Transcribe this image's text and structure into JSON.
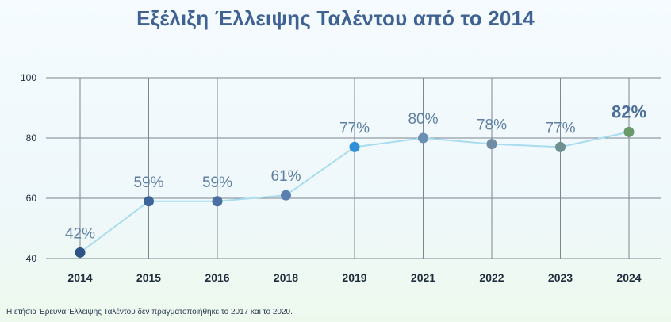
{
  "title": "Εξέλιξη Έλλειψης Ταλέντου από το 2014",
  "footnote": "Η ετήσια Έρευνα Έλλειψης Ταλέντου δεν πραγματοποιήθηκε το 2017 και το 2020.",
  "colors": {
    "title": "#3f6292",
    "line": "#a8dcee",
    "grid": "#7d858f",
    "label": "#5f7fa3",
    "highlight_label": "#4a6e98",
    "axis_text": "#1f2d3d"
  },
  "chart_data": {
    "type": "line",
    "title": "Εξέλιξη Έλλειψης Ταλέντου από το 2014",
    "categories": [
      "2014",
      "2015",
      "2016",
      "2018",
      "2019",
      "2021",
      "2022",
      "2023",
      "2024"
    ],
    "values": [
      42,
      59,
      59,
      61,
      77,
      80,
      78,
      77,
      82
    ],
    "data_labels": [
      "42%",
      "59%",
      "59%",
      "61%",
      "77%",
      "80%",
      "78%",
      "77%",
      "82%"
    ],
    "point_colors": [
      "#2e5387",
      "#3d6496",
      "#4a6fa0",
      "#5a7fb0",
      "#2f8fd8",
      "#6a8fb5",
      "#708ba8",
      "#6e9090",
      "#6a9a6a"
    ],
    "yticks": [
      "40",
      "60",
      "80",
      "100"
    ],
    "ylim": [
      40,
      100
    ],
    "grid": true,
    "highlight_last": true
  }
}
